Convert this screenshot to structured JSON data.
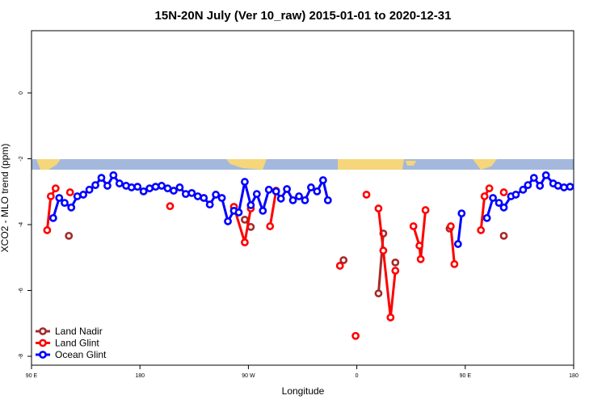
{
  "chart_data": {
    "type": "line",
    "title": "15N-20N July (Ver 10_raw)   2015-01-01 to 2020-12-31",
    "x_label": "Longitude",
    "y_label": "XCO2 - MLO trend (ppm)",
    "xlim": [
      90,
      540
    ],
    "ylim": [
      -8.27,
      1.89
    ],
    "xticks": [
      {
        "value": 90,
        "label": "90 E"
      },
      {
        "value": 180,
        "label": "180"
      },
      {
        "value": 270,
        "label": "90 W"
      },
      {
        "value": 360,
        "label": "0"
      },
      {
        "value": 450,
        "label": "90 E"
      },
      {
        "value": 540,
        "label": "180"
      }
    ],
    "yticks": [
      0,
      -2,
      -4,
      -6,
      -8
    ],
    "legend": "bottomleft",
    "series": [
      {
        "name": "Land Nadir",
        "color": "#a52a2a",
        "x": [
          121,
          200,
          267,
          272,
          310,
          349,
          365,
          378,
          382,
          387,
          392,
          415,
          437,
          460,
          482
        ],
        "values": [
          -4.34,
          null,
          -3.85,
          -4.07,
          null,
          -5.08,
          null,
          -6.09,
          -4.27,
          null,
          -5.15,
          null,
          -4.12,
          null,
          -4.34
        ]
      },
      {
        "name": "Land Glint",
        "color": "#ff0000",
        "x": [
          103,
          106,
          110,
          116,
          122,
          160,
          205,
          230,
          258,
          267,
          272,
          280,
          288,
          293,
          320,
          346,
          352,
          359,
          364,
          368,
          373,
          378,
          382,
          388,
          392,
          400,
          407,
          412,
          413,
          417,
          428,
          438,
          441,
          452,
          463,
          466,
          470,
          476,
          482
        ],
        "values": [
          -4.17,
          -3.14,
          -2.9,
          null,
          -3.02,
          null,
          -3.44,
          null,
          -3.46,
          -4.54,
          -3.51,
          null,
          -4.05,
          -2.97,
          null,
          -5.25,
          null,
          -7.38,
          null,
          -3.09,
          null,
          -3.51,
          -4.79,
          -6.82,
          -5.4,
          null,
          -4.05,
          -4.64,
          -5.05,
          -3.56,
          null,
          -4.05,
          -5.2,
          null,
          -4.17,
          -3.14,
          -2.9,
          null,
          -3.02
        ]
      },
      {
        "name": "Ocean Glint",
        "color": "#0000ff",
        "x": [
          108,
          113,
          117.5,
          123,
          128,
          133,
          138,
          143,
          148,
          153,
          158,
          163,
          168.5,
          173,
          178,
          183,
          188,
          193,
          198,
          203,
          208,
          213,
          218,
          223,
          228,
          233,
          238,
          243,
          248,
          253,
          258,
          262,
          267,
          272,
          277,
          282,
          287,
          293,
          297,
          302,
          307,
          312,
          317,
          322,
          327,
          332,
          336,
          390,
          444,
          447,
          457,
          468,
          473,
          478,
          482,
          488,
          492,
          498,
          502,
          507,
          512,
          517,
          523,
          527,
          532,
          537
        ],
        "values": [
          -3.8,
          -3.19,
          -3.34,
          -3.48,
          -3.14,
          -3.09,
          -2.94,
          -2.8,
          -2.58,
          -2.82,
          -2.5,
          -2.75,
          -2.82,
          -2.87,
          -2.85,
          -2.99,
          -2.9,
          -2.85,
          -2.82,
          -2.9,
          -2.97,
          -2.87,
          -3.07,
          -3.04,
          -3.14,
          -3.19,
          -3.39,
          -3.09,
          -3.19,
          -3.9,
          -3.58,
          -3.63,
          -2.7,
          -3.41,
          -3.07,
          -3.58,
          -2.94,
          -2.99,
          -3.21,
          -2.92,
          -3.26,
          -3.14,
          -3.26,
          -2.87,
          -2.99,
          -2.65,
          -3.26,
          null,
          -4.59,
          -3.66,
          null,
          -3.8,
          -3.19,
          -3.34,
          -3.48,
          -3.14,
          -3.09,
          -2.94,
          -2.8,
          -2.58,
          -2.82,
          -2.5,
          -2.75,
          -2.82,
          -2.87,
          -2.85
        ]
      }
    ]
  }
}
